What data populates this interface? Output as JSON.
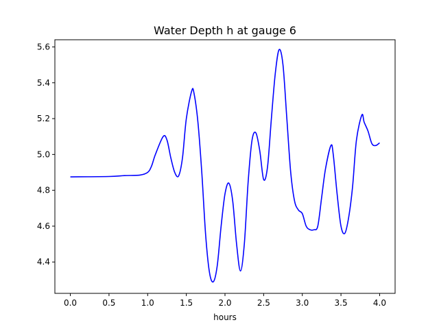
{
  "chart_data": {
    "type": "line",
    "title": "Water Depth h at gauge 6",
    "xlabel": "hours",
    "ylabel": "",
    "xlim": [
      -0.2,
      4.2
    ],
    "ylim": [
      4.225,
      5.64
    ],
    "xticks": [
      0.0,
      0.5,
      1.0,
      1.5,
      2.0,
      2.5,
      3.0,
      3.5,
      4.0
    ],
    "xtick_labels": [
      "0.0",
      "0.5",
      "1.0",
      "1.5",
      "2.0",
      "2.5",
      "3.0",
      "3.5",
      "4.0"
    ],
    "yticks": [
      4.4,
      4.6,
      4.8,
      5.0,
      5.2,
      5.4,
      5.6
    ],
    "ytick_labels": [
      "4.4",
      "4.6",
      "4.8",
      "5.0",
      "5.2",
      "5.4",
      "5.6"
    ],
    "grid": false,
    "legend": "none",
    "series": [
      {
        "color": "#0000ff",
        "x": [
          0.0,
          0.5,
          0.7,
          0.9,
          1.0,
          1.05,
          1.1,
          1.2,
          1.25,
          1.3,
          1.35,
          1.4,
          1.45,
          1.5,
          1.57,
          1.6,
          1.65,
          1.7,
          1.75,
          1.8,
          1.85,
          1.9,
          1.95,
          2.0,
          2.05,
          2.1,
          2.15,
          2.2,
          2.25,
          2.3,
          2.35,
          2.4,
          2.45,
          2.5,
          2.55,
          2.6,
          2.65,
          2.7,
          2.75,
          2.8,
          2.85,
          2.9,
          2.95,
          3.0,
          3.05,
          3.1,
          3.15,
          3.2,
          3.25,
          3.3,
          3.37,
          3.4,
          3.45,
          3.5,
          3.55,
          3.6,
          3.65,
          3.7,
          3.77,
          3.8,
          3.85,
          3.9,
          3.95,
          4.0
        ],
        "y": [
          4.875,
          4.877,
          4.882,
          4.885,
          4.9,
          4.935,
          5.0,
          5.1,
          5.08,
          4.98,
          4.9,
          4.88,
          4.98,
          5.2,
          5.355,
          5.34,
          5.18,
          4.9,
          4.55,
          4.34,
          4.29,
          4.38,
          4.6,
          4.78,
          4.84,
          4.74,
          4.5,
          4.35,
          4.5,
          4.85,
          5.08,
          5.12,
          5.02,
          4.86,
          4.93,
          5.2,
          5.45,
          5.585,
          5.5,
          5.2,
          4.9,
          4.74,
          4.69,
          4.67,
          4.6,
          4.58,
          4.58,
          4.6,
          4.76,
          4.92,
          5.05,
          5.0,
          4.78,
          4.6,
          4.56,
          4.65,
          4.82,
          5.08,
          5.22,
          5.18,
          5.13,
          5.06,
          5.05,
          5.065
        ]
      }
    ]
  }
}
